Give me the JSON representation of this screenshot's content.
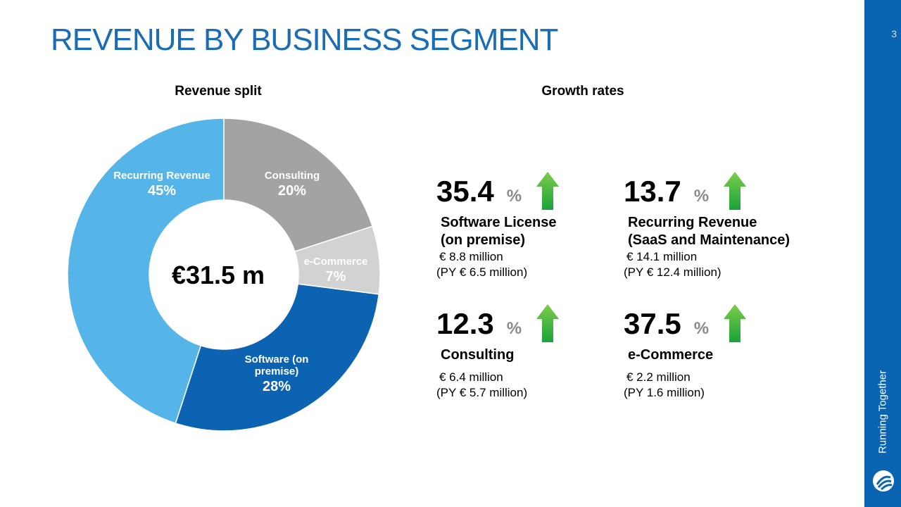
{
  "page_number": "3",
  "title": "REVENUE BY BUSINESS SEGMENT",
  "tagline": "Running Together",
  "chart_data": {
    "type": "pie",
    "title": "Revenue split",
    "center_label": "€31.5 m",
    "categories": [
      "Consulting",
      "e-Commerce",
      "Software (on premise)",
      "Recurring Revenue"
    ],
    "values": [
      20,
      7,
      28,
      45
    ],
    "value_labels": [
      "20%",
      "7%",
      "28%",
      "45%"
    ],
    "colors": [
      "#a3a3a3",
      "#d2d2d2",
      "#0c63b2",
      "#56b5e8"
    ],
    "donut": true
  },
  "growth": {
    "title": "Growth rates",
    "items": [
      {
        "value": "35.4",
        "unit": "%",
        "name_lines": [
          "Software License",
          "(on premise)"
        ],
        "details": [
          "€ 8.8 million",
          "(PY € 6.5 million)"
        ]
      },
      {
        "value": "13.7",
        "unit": "%",
        "name_lines": [
          "Recurring Revenue",
          "(SaaS and Maintenance)"
        ],
        "details": [
          "€ 14.1 million",
          "(PY € 12.4 million)"
        ]
      },
      {
        "value": "12.3",
        "unit": "%",
        "name_lines": [
          "Consulting"
        ],
        "details": [
          "€ 6.4 million",
          "(PY € 5.7 million)"
        ]
      },
      {
        "value": "37.5",
        "unit": "%",
        "name_lines": [
          "e-Commerce"
        ],
        "details": [
          "€ 2.2 million",
          "(PY 1.6 million)"
        ]
      }
    ]
  }
}
